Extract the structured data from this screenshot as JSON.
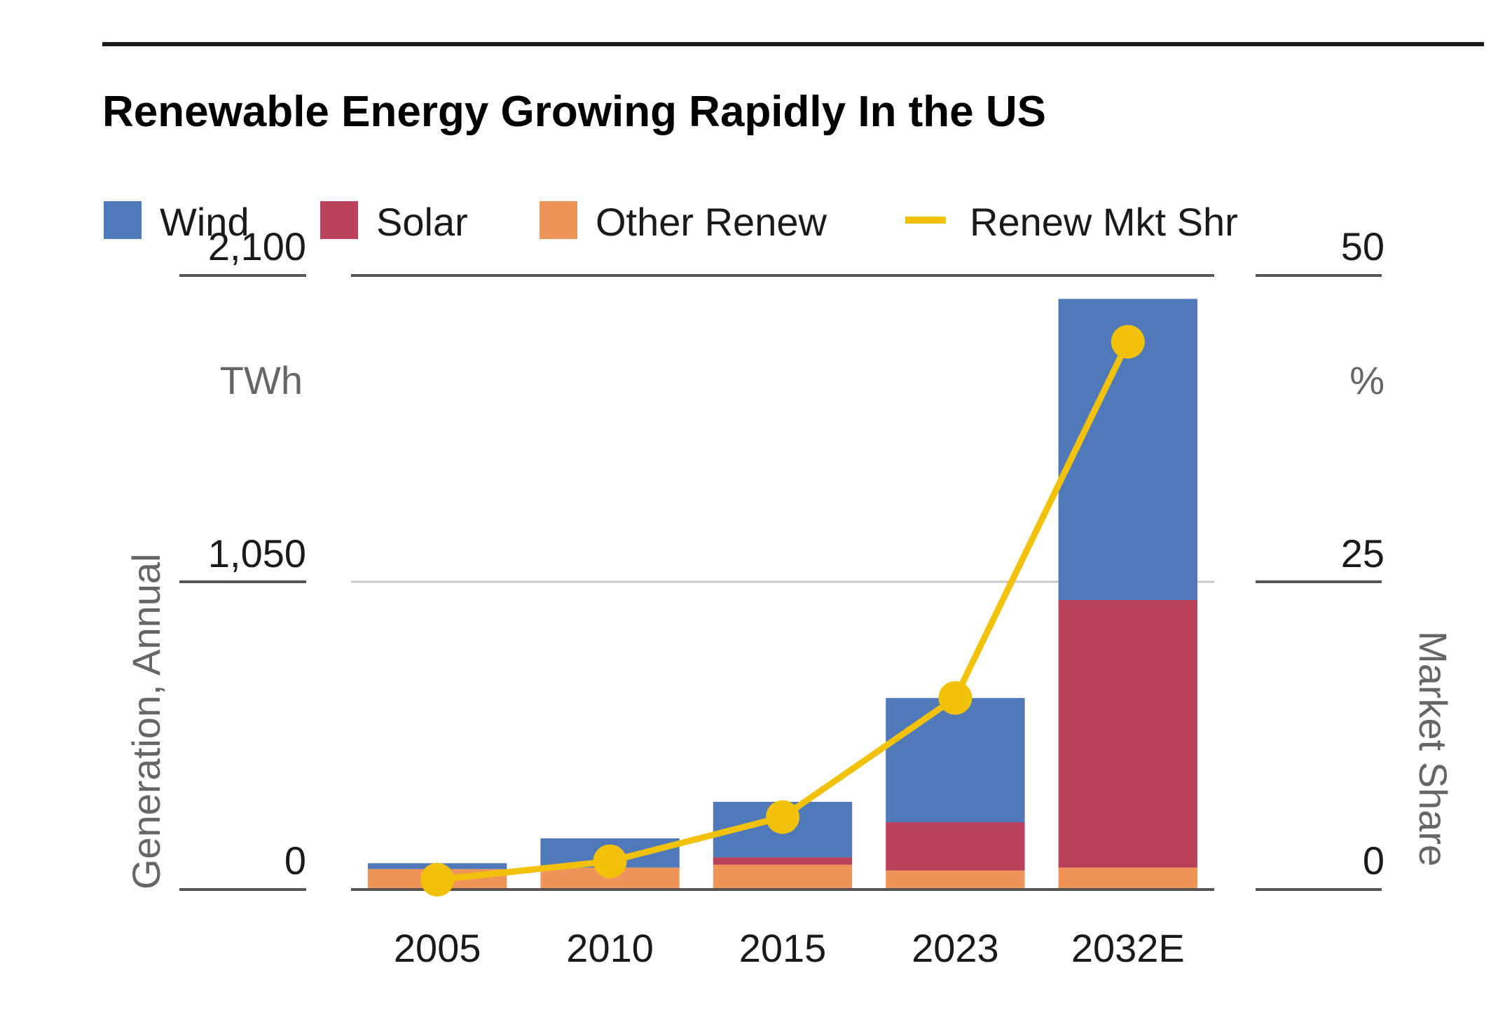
{
  "chart_data": {
    "type": "bar",
    "stacked": true,
    "title": "Renewable Energy Growing Rapidly In the US",
    "categories": [
      "2005",
      "2010",
      "2015",
      "2023",
      "2032E"
    ],
    "series": [
      {
        "name": "Other Renew",
        "kind": "bar",
        "axis": "left",
        "color": "#f0955a",
        "values": [
          70,
          75,
          85,
          65,
          75
        ]
      },
      {
        "name": "Solar",
        "kind": "bar",
        "axis": "left",
        "color": "#b9415a",
        "values": [
          0,
          0,
          25,
          165,
          915
        ]
      },
      {
        "name": "Wind",
        "kind": "bar",
        "axis": "left",
        "color": "#5079b9",
        "values": [
          20,
          100,
          190,
          425,
          1030
        ]
      },
      {
        "name": "Renew Mkt Shr",
        "kind": "line",
        "axis": "right",
        "color": "#f2c20a",
        "values": [
          0.8,
          2.3,
          5.9,
          15.6,
          44.6
        ]
      }
    ],
    "legend": {
      "placement": "top-left",
      "order": [
        "Wind",
        "Solar",
        "Other Renew",
        "Renew Mkt Shr"
      ]
    },
    "y_left": {
      "label": "Generation, Annual",
      "unit": "TWh",
      "ylim": [
        0,
        2100
      ],
      "ticks": [
        0,
        1050,
        2100
      ],
      "tick_labels": [
        "0",
        "1,050",
        "2,100"
      ]
    },
    "y_right": {
      "label": "Market Share",
      "unit": "%",
      "ylim": [
        0,
        50
      ],
      "ticks": [
        0,
        25,
        50
      ],
      "tick_labels": [
        "0",
        "25",
        "50"
      ]
    },
    "grid": true
  }
}
